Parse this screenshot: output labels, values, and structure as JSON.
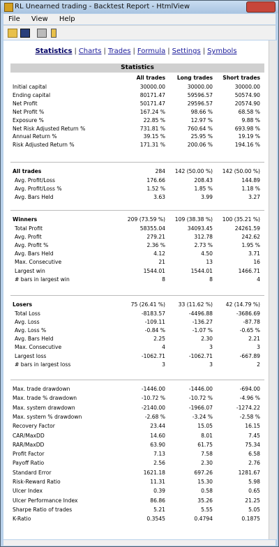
{
  "window": {
    "title": "RL Unearned trading - Backtest Report - HtmlView",
    "menu": [
      "File",
      "View",
      "Help"
    ]
  },
  "nav": [
    "Statistics",
    "Charts",
    "Trades",
    "Formula",
    "Settings",
    "Symbols"
  ],
  "table": {
    "title": "Statistics",
    "columns": [
      "All trades",
      "Long trades",
      "Short trades"
    ],
    "sections": [
      {
        "rows": [
          {
            "label": "Initial capital",
            "values": [
              "30000.00",
              "30000.00",
              "30000.00"
            ]
          },
          {
            "label": "Ending capital",
            "values": [
              "80171.47",
              "59596.57",
              "50574.90"
            ]
          },
          {
            "label": "Net Profit",
            "values": [
              "50171.47",
              "29596.57",
              "20574.90"
            ]
          },
          {
            "label": "Net Profit %",
            "values": [
              "167.24 %",
              "98.66 %",
              "68.58 %"
            ]
          },
          {
            "label": "Exposure %",
            "values": [
              "22.85 %",
              "12.97 %",
              "9.88 %"
            ]
          },
          {
            "label": "Net Risk Adjusted Return %",
            "values": [
              "731.81 %",
              "760.64 %",
              "693.98 %"
            ]
          },
          {
            "label": "Annual Return %",
            "values": [
              "39.15 %",
              "25.95 %",
              "19.19 %"
            ]
          },
          {
            "label": "Risk Adjusted Return %",
            "values": [
              "171.31 %",
              "200.06 %",
              "194.16 %"
            ]
          }
        ]
      },
      {
        "header": {
          "label": "All trades",
          "values": [
            "284",
            "142 (50.00 %)",
            "142 (50.00 %)"
          ]
        },
        "rows": [
          {
            "label": "Avg. Profit/Loss",
            "values": [
              "176.66",
              "208.43",
              "144.89"
            ]
          },
          {
            "label": "Avg. Profit/Loss %",
            "values": [
              "1.52 %",
              "1.85 %",
              "1.18 %"
            ]
          },
          {
            "label": "Avg. Bars Held",
            "values": [
              "3.63",
              "3.99",
              "3.27"
            ]
          }
        ]
      },
      {
        "header": {
          "label": "Winners",
          "values": [
            "209 (73.59 %)",
            "109 (38.38 %)",
            "100 (35.21 %)"
          ]
        },
        "rows": [
          {
            "label": "Total Profit",
            "values": [
              "58355.04",
              "34093.45",
              "24261.59"
            ]
          },
          {
            "label": "Avg. Profit",
            "values": [
              "279.21",
              "312.78",
              "242.62"
            ]
          },
          {
            "label": "Avg. Profit %",
            "values": [
              "2.36 %",
              "2.73 %",
              "1.95 %"
            ]
          },
          {
            "label": "Avg. Bars Held",
            "values": [
              "4.12",
              "4.50",
              "3.71"
            ]
          },
          {
            "label": "Max. Consecutive",
            "values": [
              "21",
              "13",
              "16"
            ]
          },
          {
            "label": "Largest win",
            "values": [
              "1544.01",
              "1544.01",
              "1466.71"
            ]
          },
          {
            "label": "# bars in largest win",
            "values": [
              "8",
              "8",
              "4"
            ]
          }
        ]
      },
      {
        "header": {
          "label": "Losers",
          "values": [
            "75 (26.41 %)",
            "33 (11.62 %)",
            "42 (14.79 %)"
          ]
        },
        "rows": [
          {
            "label": "Total Loss",
            "values": [
              "-8183.57",
              "-4496.88",
              "-3686.69"
            ]
          },
          {
            "label": "Avg. Loss",
            "values": [
              "-109.11",
              "-136.27",
              "-87.78"
            ]
          },
          {
            "label": "Avg. Loss %",
            "values": [
              "-0.84 %",
              "-1.07 %",
              "-0.65 %"
            ]
          },
          {
            "label": "Avg. Bars Held",
            "values": [
              "2.25",
              "2.30",
              "2.21"
            ]
          },
          {
            "label": "Max. Consecutive",
            "values": [
              "4",
              "3",
              "3"
            ]
          },
          {
            "label": "Largest loss",
            "values": [
              "-1062.71",
              "-1062.71",
              "-667.89"
            ]
          },
          {
            "label": "# bars in largest loss",
            "values": [
              "3",
              "3",
              "2"
            ]
          }
        ]
      },
      {
        "rows": [
          {
            "label": "Max. trade drawdown",
            "values": [
              "-1446.00",
              "-1446.00",
              "-694.00"
            ]
          },
          {
            "label": "Max. trade % drawdown",
            "values": [
              "-10.72 %",
              "-10.72 %",
              "-4.96 %"
            ]
          },
          {
            "label": "Max. system drawdown",
            "values": [
              "-2140.00",
              "-1966.07",
              "-1274.22"
            ]
          },
          {
            "label": "Max. system % drawdown",
            "values": [
              "-2.68 %",
              "-3.24 %",
              "-2.58 %"
            ]
          },
          {
            "label": "Recovery Factor",
            "values": [
              "23.44",
              "15.05",
              "16.15"
            ]
          },
          {
            "label": "CAR/MaxDD",
            "values": [
              "14.60",
              "8.01",
              "7.45"
            ]
          },
          {
            "label": "RAR/MaxDD",
            "values": [
              "63.90",
              "61.75",
              "75.34"
            ]
          },
          {
            "label": "Profit Factor",
            "values": [
              "7.13",
              "7.58",
              "6.58"
            ]
          },
          {
            "label": "Payoff Ratio",
            "values": [
              "2.56",
              "2.30",
              "2.76"
            ]
          },
          {
            "label": "Standard Error",
            "values": [
              "1621.18",
              "697.26",
              "1281.67"
            ]
          },
          {
            "label": "Risk-Reward Ratio",
            "values": [
              "11.31",
              "15.30",
              "5.98"
            ]
          },
          {
            "label": "Ulcer Index",
            "values": [
              "0.39",
              "0.58",
              "0.65"
            ]
          },
          {
            "label": "Ulcer Performance Index",
            "values": [
              "86.86",
              "35.26",
              "21.25"
            ]
          },
          {
            "label": "Sharpe Ratio of trades",
            "values": [
              "5.21",
              "5.55",
              "5.05"
            ]
          },
          {
            "label": "K-Ratio",
            "values": [
              "0.3545",
              "0.4794",
              "0.1875"
            ]
          }
        ]
      }
    ]
  }
}
